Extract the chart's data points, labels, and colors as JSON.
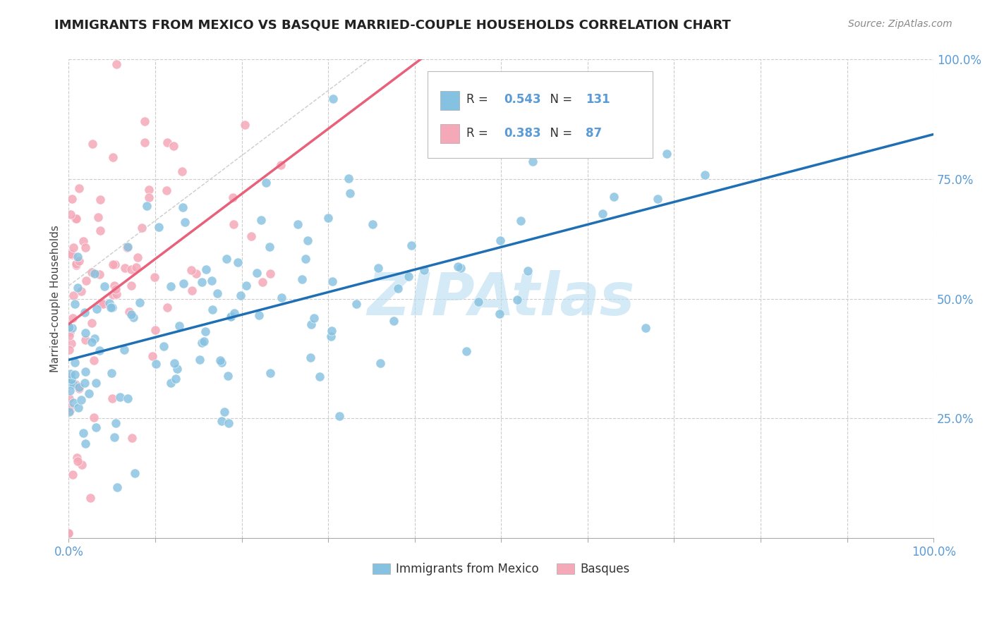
{
  "title": "IMMIGRANTS FROM MEXICO VS BASQUE MARRIED-COUPLE HOUSEHOLDS CORRELATION CHART",
  "source": "Source: ZipAtlas.com",
  "blue_R": 0.543,
  "blue_N": 131,
  "pink_R": 0.383,
  "pink_N": 87,
  "blue_color": "#85c1e0",
  "pink_color": "#f5a8b8",
  "blue_line_color": "#1f6fb5",
  "pink_line_color": "#e8607a",
  "watermark": "ZIPAtlas",
  "watermark_color": "#b8ddf0",
  "legend_label_blue": "Immigrants from Mexico",
  "legend_label_pink": "Basques",
  "ytick_vals": [
    0.25,
    0.5,
    0.75,
    1.0
  ],
  "ytick_labels": [
    "25.0%",
    "50.0%",
    "75.0%",
    "100.0%"
  ],
  "tick_color": "#5b9bd5",
  "title_color": "#222222",
  "source_color": "#888888",
  "ylabel": "Married-couple Households"
}
